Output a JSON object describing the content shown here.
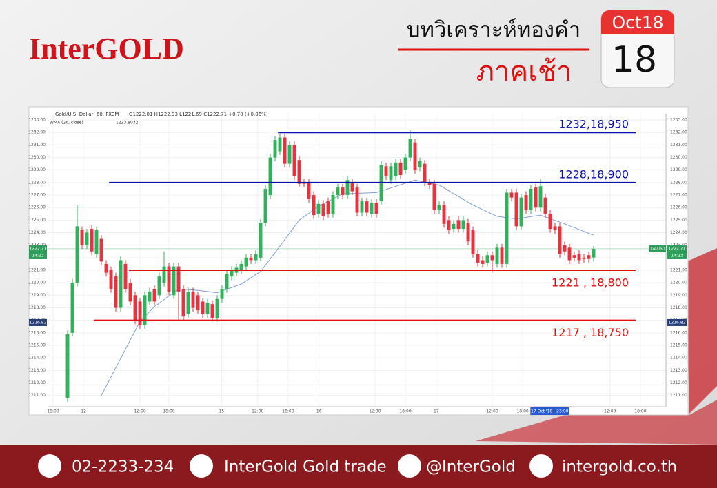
{
  "header": {
    "brand": "InterGOLD",
    "title": "บทวิเคราะห์ทองคำ",
    "subtitle": "ภาคเช้า",
    "calendar_month": "Oct18",
    "calendar_day": "18"
  },
  "chart_data": {
    "type": "candlestick",
    "symbol": "Gold/U.S. Dollar, 60, FXCM",
    "ohlc_info": "O1222.01 H1222.93 L1221.69 C1222.71 +0.70 (+0.06%)",
    "indicator": "WMA (26, close)",
    "indicator_value": "1223.8032",
    "up_color": "#2fb25a",
    "down_color": "#e3343f",
    "x": [
      0,
      1,
      2,
      3,
      4,
      5,
      6,
      7,
      8,
      9,
      10,
      11,
      12,
      13,
      14,
      15,
      16,
      17,
      18,
      19,
      20,
      21,
      22,
      23,
      24,
      25,
      26,
      27,
      28,
      29,
      30,
      31,
      32,
      33,
      34,
      35,
      36,
      37,
      38,
      39,
      40,
      41,
      42,
      43,
      44,
      45,
      46,
      47,
      48,
      49,
      50,
      51,
      52,
      53,
      54,
      55,
      56,
      57,
      58,
      59,
      60,
      61,
      62,
      63,
      64,
      65,
      66,
      67,
      68,
      69,
      70,
      71,
      72,
      73,
      74,
      75,
      76,
      77,
      78,
      79,
      80,
      81,
      82,
      83,
      84,
      85,
      86,
      87,
      88,
      89,
      90,
      91,
      92,
      93,
      94,
      95,
      96,
      97,
      98,
      99,
      100,
      101,
      102,
      103,
      104,
      105,
      106,
      107,
      108,
      109
    ],
    "open": [
      1210.8,
      1216,
      1220,
      1224.2,
      1223,
      1224.3,
      1222.3,
      1223.5,
      1221.5,
      1221,
      1220.5,
      1218,
      1221.5,
      1220,
      1219,
      1218.5,
      1216.6,
      1218.5,
      1219.5,
      1219,
      1220,
      1221.3,
      1219,
      1221.3,
      1219.5,
      1217.5,
      1219.3,
      1219,
      1218.5,
      1217.5,
      1218.3,
      1217.2,
      1218.7,
      1219.5,
      1220.5,
      1220.8,
      1221,
      1221.3,
      1222,
      1221.8,
      1222,
      1224.8,
      1227,
      1230,
      1230.5,
      1231.6,
      1229.5,
      1231,
      1229.8,
      1228,
      1228,
      1227,
      1225.5,
      1226.3,
      1226.5,
      1225.5,
      1227,
      1227.6,
      1227,
      1228,
      1227.6,
      1225.6,
      1226.5,
      1225.5,
      1226.4,
      1226.5,
      1229.3,
      1228.2,
      1228.5,
      1229.6,
      1229,
      1230,
      1231.2,
      1229.2,
      1229.5,
      1228,
      1227.9,
      1225.8,
      1226.2,
      1225,
      1224.3,
      1225,
      1224.3,
      1224.8,
      1224.2,
      1222.3,
      1221.8,
      1221.6,
      1222.2,
      1221.5,
      1222.8,
      1221.5,
      1227.2,
      1227.2,
      1224.5,
      1227,
      1225.8,
      1227.6,
      1226,
      1226.8,
      1225.5,
      1224.5,
      1224.5,
      1223,
      1222.8,
      1222.2,
      1222.3,
      1222,
      1222.2,
      1222.01
    ],
    "high": [
      1216.2,
      1220.3,
      1226.2,
      1224.5,
      1224.3,
      1224.6,
      1224.5,
      1223.8,
      1221.8,
      1221.3,
      1220.8,
      1222.1,
      1221.8,
      1220.3,
      1219.3,
      1218.8,
      1219.3,
      1219.6,
      1219.8,
      1220.8,
      1222.5,
      1221.6,
      1221.6,
      1221.6,
      1219.8,
      1219.6,
      1219.6,
      1219.3,
      1218.8,
      1218.7,
      1218.6,
      1219,
      1219.8,
      1221,
      1221.3,
      1221.5,
      1221.8,
      1222.3,
      1222.3,
      1222.6,
      1225.1,
      1227.8,
      1230.3,
      1231.7,
      1231.9,
      1231.9,
      1231.3,
      1231.3,
      1230.1,
      1228.3,
      1228.3,
      1227.3,
      1226.6,
      1226.6,
      1226.8,
      1227.3,
      1227.9,
      1227.9,
      1228.5,
      1228.3,
      1227.9,
      1226.8,
      1226.8,
      1226.7,
      1226.7,
      1229.7,
      1229.6,
      1229.6,
      1229.9,
      1229.9,
      1230.3,
      1232.2,
      1231.5,
      1230,
      1229.8,
      1228.3,
      1228.2,
      1226.5,
      1226.5,
      1225.3,
      1225,
      1225.3,
      1225.3,
      1225.1,
      1224.5,
      1222.6,
      1222.1,
      1222.5,
      1222.5,
      1223.1,
      1223.1,
      1227.5,
      1227.5,
      1227.5,
      1227.1,
      1227.3,
      1227.8,
      1227.9,
      1228.3,
      1227.1,
      1225.8,
      1224.8,
      1224.8,
      1223.3,
      1223.1,
      1222.5,
      1222.6,
      1222.3,
      1222.5,
      1222.93
    ],
    "low": [
      1210.5,
      1215.7,
      1219.7,
      1222.7,
      1222.7,
      1222.2,
      1222,
      1221.4,
      1220.5,
      1219.2,
      1217.7,
      1217.7,
      1219.2,
      1218.2,
      1216.7,
      1216.3,
      1216.3,
      1218.2,
      1218.2,
      1218.7,
      1219.7,
      1219,
      1218.7,
      1217,
      1217,
      1217.2,
      1217.7,
      1217.5,
      1217.2,
      1217.2,
      1216.9,
      1216.9,
      1218.4,
      1219.2,
      1220.2,
      1220.5,
      1220.7,
      1221,
      1221.5,
      1221.5,
      1221.7,
      1224.5,
      1226.7,
      1229.7,
      1230.2,
      1229.2,
      1229.2,
      1228.2,
      1227.6,
      1227.6,
      1226.4,
      1225.1,
      1225.2,
      1225,
      1225.2,
      1225.2,
      1226.7,
      1226.7,
      1226.7,
      1227,
      1225.3,
      1225.3,
      1225.3,
      1225.2,
      1225.2,
      1226.2,
      1228.2,
      1227.9,
      1228.2,
      1228.3,
      1228.7,
      1229.7,
      1228.7,
      1228.9,
      1227.7,
      1227.5,
      1225.5,
      1225.5,
      1224.4,
      1223.9,
      1224,
      1224,
      1224,
      1223,
      1222,
      1221.3,
      1221.2,
      1221.3,
      1220.8,
      1221.2,
      1221.2,
      1221.2,
      1226.5,
      1224.2,
      1224.2,
      1225.5,
      1225.5,
      1225.7,
      1225.7,
      1225.2,
      1224,
      1223.9,
      1222,
      1222.2,
      1221.5,
      1221.7,
      1221.5,
      1221.6,
      1221.6,
      1221.69
    ],
    "close": [
      1215.9,
      1220,
      1224.5,
      1223,
      1224,
      1222.5,
      1224.2,
      1221.7,
      1220.8,
      1219.5,
      1218,
      1221.8,
      1219.5,
      1218.5,
      1217,
      1216.6,
      1219,
      1219.3,
      1218.5,
      1220.5,
      1221.3,
      1219.3,
      1221.3,
      1219.3,
      1217.3,
      1219.3,
      1218,
      1217.8,
      1217.5,
      1218.4,
      1217.2,
      1218.7,
      1219.5,
      1220.7,
      1221,
      1221.2,
      1221.5,
      1222,
      1221.8,
      1222.3,
      1224.8,
      1227.5,
      1230,
      1231.4,
      1231.6,
      1229.5,
      1231,
      1228.5,
      1227.9,
      1227.9,
      1226.7,
      1225.4,
      1226.3,
      1225.3,
      1225.5,
      1227,
      1227.6,
      1227,
      1228.2,
      1227.3,
      1225.6,
      1226.5,
      1225.6,
      1226.4,
      1225.5,
      1229.4,
      1228.5,
      1229.3,
      1229.6,
      1228.6,
      1230,
      1231.5,
      1229,
      1229.7,
      1228,
      1227.8,
      1225.8,
      1226.2,
      1224.7,
      1224.2,
      1224.7,
      1224.3,
      1225,
      1223.3,
      1222.3,
      1221.6,
      1221.5,
      1222.2,
      1221.8,
      1222.8,
      1221.5,
      1227.2,
      1226.8,
      1224.5,
      1226.8,
      1225.8,
      1227.5,
      1226,
      1227.7,
      1225.5,
      1224.3,
      1224.2,
      1222.3,
      1222.5,
      1221.8,
      1222,
      1221.8,
      1221.9,
      1221.9,
      1222.71
    ],
    "indicator_line": {
      "color": "#7f9fd6",
      "x": [
        7,
        15,
        18,
        23,
        27,
        31,
        36,
        40,
        43,
        48,
        52,
        57,
        64,
        72,
        77,
        84,
        89,
        93,
        98,
        103,
        109
      ],
      "values": [
        1211,
        1216.9,
        1218.1,
        1219.5,
        1219.4,
        1219.2,
        1219.9,
        1220.9,
        1222.4,
        1225,
        1226.1,
        1227.1,
        1227.2,
        1228.2,
        1227.8,
        1226.2,
        1225.3,
        1225.1,
        1225.4,
        1224.7,
        1223.8
      ]
    },
    "xlim": [
      -4,
      124
    ],
    "xticks": [
      {
        "value": -3,
        "label": "18:00"
      },
      {
        "value": 3.3,
        "label": "12"
      },
      {
        "value": 15,
        "label": "12:00"
      },
      {
        "value": 21,
        "label": "18:00"
      },
      {
        "value": 31.9,
        "label": "15"
      },
      {
        "value": 39.4,
        "label": "12:00"
      },
      {
        "value": 45.7,
        "label": "18:00"
      },
      {
        "value": 52.1,
        "label": "16"
      },
      {
        "value": 63.7,
        "label": "12:00"
      },
      {
        "value": 70,
        "label": "18:00"
      },
      {
        "value": 76.4,
        "label": "17"
      },
      {
        "value": 88,
        "label": "12:00"
      },
      {
        "value": 94.3,
        "label": "18:00"
      },
      {
        "value": 112.4,
        "label": "12:00"
      },
      {
        "value": 118.7,
        "label": "18:00"
      }
    ],
    "cursor_label": {
      "value": 99.9,
      "label": "17 Oct '18 - 23:00"
    },
    "ylim": [
      1210.1,
      1233.5
    ],
    "yticks": [
      {
        "value": 1211,
        "label": "1211.00"
      },
      {
        "value": 1212,
        "label": "1212.00"
      },
      {
        "value": 1213,
        "label": "1213.00"
      },
      {
        "value": 1214,
        "label": "1214.00"
      },
      {
        "value": 1215,
        "label": "1215.00"
      },
      {
        "value": 1216,
        "label": "1216.00"
      },
      {
        "value": 1217,
        "label": "1217.00"
      },
      {
        "value": 1218,
        "label": "1218.00"
      },
      {
        "value": 1219,
        "label": "1219.00"
      },
      {
        "value": 1220,
        "label": "1220.00"
      },
      {
        "value": 1221,
        "label": "1221.00"
      },
      {
        "value": 1222,
        "label": "1222.00"
      },
      {
        "value": 1223,
        "label": "1223.00"
      },
      {
        "value": 1224,
        "label": "1224.00"
      },
      {
        "value": 1225,
        "label": "1225.00"
      },
      {
        "value": 1226,
        "label": "1226.00"
      },
      {
        "value": 1227,
        "label": "1227.00"
      },
      {
        "value": 1228,
        "label": "1228.00"
      },
      {
        "value": 1229,
        "label": "1229.00"
      },
      {
        "value": 1230,
        "label": "1230.00"
      },
      {
        "value": 1231,
        "label": "1231.00"
      },
      {
        "value": 1232,
        "label": "1232.00"
      },
      {
        "value": 1233,
        "label": "1233.00"
      }
    ],
    "grid": true,
    "levels": [
      {
        "value": 1232,
        "label": "1232,18,950",
        "color": "#0a10b0",
        "x_start": 43.6,
        "x_end": 117.7
      },
      {
        "value": 1228,
        "label": "1228,18,900",
        "color": "#0a10b0",
        "x_start": 8.6,
        "x_end": 117.7
      },
      {
        "value": 1221,
        "label": "1221 , 18,800",
        "color": "#e01010",
        "x_start": 12.7,
        "x_end": 117.7
      },
      {
        "value": 1217,
        "label": "1217 , 18,750",
        "color": "#e01010",
        "x_start": 5.4,
        "x_end": 117.7
      }
    ],
    "price_tags": [
      {
        "value": 1222.71,
        "color": "#2e9e5b"
      },
      {
        "value": 1216.82,
        "color": "#27407a"
      }
    ],
    "time_tag": "14:23",
    "symbol_tag": "XAUUSD"
  },
  "footer": {
    "phone": "02-2233-234",
    "facebook": "InterGold Gold trade",
    "line": "@InterGold",
    "website": "intergold.co.th"
  }
}
